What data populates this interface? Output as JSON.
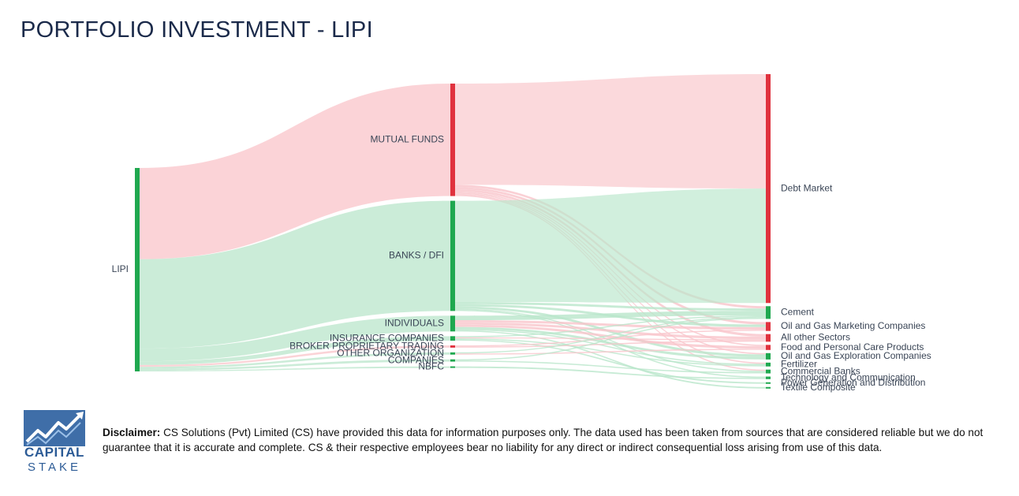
{
  "title": "PORTFOLIO INVESTMENT - LIPI",
  "colors": {
    "buy": "#1fa84f",
    "sell": "#e0323e",
    "buy_link": "#b9e6cb",
    "sell_link": "#f9c4ca",
    "label": "#3a4556"
  },
  "sankey": {
    "source": {
      "name": "LIPI",
      "color": "buy"
    },
    "investors": [
      {
        "name": "MUTUAL FUNDS",
        "color": "sell",
        "value": 100
      },
      {
        "name": "BANKS / DFI",
        "color": "buy",
        "value": 98
      },
      {
        "name": "INDIVIDUALS",
        "color": "buy",
        "value": 14
      },
      {
        "name": "INSURANCE COMPANIES",
        "color": "buy",
        "value": 4
      },
      {
        "name": "BROKER PROPRIETARY TRADING",
        "color": "sell",
        "value": 2
      },
      {
        "name": "OTHER ORGANIZATION",
        "color": "buy",
        "value": 2
      },
      {
        "name": "COMPANIES",
        "color": "buy",
        "value": 2
      },
      {
        "name": "NBFC",
        "color": "buy",
        "value": 1
      }
    ],
    "sectors": [
      {
        "name": "Debt Market",
        "color": "sell",
        "value": 180
      },
      {
        "name": "Cement",
        "color": "buy",
        "value": 10
      },
      {
        "name": "Oil and Gas Marketing Companies",
        "color": "sell",
        "value": 7
      },
      {
        "name": "All other Sectors",
        "color": "sell",
        "value": 6
      },
      {
        "name": "Food and Personal Care Products",
        "color": "sell",
        "value": 4
      },
      {
        "name": "Oil and Gas Exploration Companies",
        "color": "buy",
        "value": 5
      },
      {
        "name": "Fertilizer",
        "color": "buy",
        "value": 3
      },
      {
        "name": "Commercial Banks",
        "color": "buy",
        "value": 3
      },
      {
        "name": "Technology and Communication",
        "color": "buy",
        "value": 2
      },
      {
        "name": "Power Generation and Distribution",
        "color": "buy",
        "value": 1
      },
      {
        "name": "Textile Composite",
        "color": "buy",
        "value": 1
      }
    ],
    "flows": [
      {
        "from": "MUTUAL FUNDS",
        "to": "Debt Market",
        "value": 90,
        "color": "sell"
      },
      {
        "from": "MUTUAL FUNDS",
        "to": "Cement",
        "value": 2,
        "color": "sell"
      },
      {
        "from": "MUTUAL FUNDS",
        "to": "Oil and Gas Marketing Companies",
        "value": 2,
        "color": "sell"
      },
      {
        "from": "MUTUAL FUNDS",
        "to": "All other Sectors",
        "value": 2,
        "color": "sell"
      },
      {
        "from": "MUTUAL FUNDS",
        "to": "Food and Personal Care Products",
        "value": 1,
        "color": "sell"
      },
      {
        "from": "MUTUAL FUNDS",
        "to": "Oil and Gas Exploration Companies",
        "value": 1,
        "color": "sell"
      },
      {
        "from": "MUTUAL FUNDS",
        "to": "Fertilizer",
        "value": 1,
        "color": "sell"
      },
      {
        "from": "MUTUAL FUNDS",
        "to": "Commercial Banks",
        "value": 1,
        "color": "sell"
      },
      {
        "from": "BANKS / DFI",
        "to": "Debt Market",
        "value": 90,
        "color": "buy"
      },
      {
        "from": "BANKS / DFI",
        "to": "Cement",
        "value": 2,
        "color": "buy"
      },
      {
        "from": "BANKS / DFI",
        "to": "Oil and Gas Marketing Companies",
        "value": 2,
        "color": "buy"
      },
      {
        "from": "BANKS / DFI",
        "to": "Oil and Gas Exploration Companies",
        "value": 2,
        "color": "buy"
      },
      {
        "from": "BANKS / DFI",
        "to": "Commercial Banks",
        "value": 1,
        "color": "buy"
      },
      {
        "from": "BANKS / DFI",
        "to": "Technology and Communication",
        "value": 1,
        "color": "buy"
      },
      {
        "from": "INDIVIDUALS",
        "to": "Cement",
        "value": 4,
        "color": "buy"
      },
      {
        "from": "INDIVIDUALS",
        "to": "Oil and Gas Marketing Companies",
        "value": 2,
        "color": "sell"
      },
      {
        "from": "INDIVIDUALS",
        "to": "All other Sectors",
        "value": 2,
        "color": "sell"
      },
      {
        "from": "INDIVIDUALS",
        "to": "Food and Personal Care Products",
        "value": 2,
        "color": "sell"
      },
      {
        "from": "INDIVIDUALS",
        "to": "Oil and Gas Exploration Companies",
        "value": 2,
        "color": "buy"
      },
      {
        "from": "INDIVIDUALS",
        "to": "Fertilizer",
        "value": 1,
        "color": "buy"
      },
      {
        "from": "INDIVIDUALS",
        "to": "Textile Composite",
        "value": 1,
        "color": "buy"
      },
      {
        "from": "INSURANCE COMPANIES",
        "to": "Cement",
        "value": 1,
        "color": "buy"
      },
      {
        "from": "INSURANCE COMPANIES",
        "to": "All other Sectors",
        "value": 1,
        "color": "sell"
      },
      {
        "from": "INSURANCE COMPANIES",
        "to": "Fertilizer",
        "value": 1,
        "color": "buy"
      },
      {
        "from": "INSURANCE COMPANIES",
        "to": "Power Generation and Distribution",
        "value": 1,
        "color": "buy"
      },
      {
        "from": "BROKER PROPRIETARY TRADING",
        "to": "Oil and Gas Marketing Companies",
        "value": 1,
        "color": "sell"
      },
      {
        "from": "BROKER PROPRIETARY TRADING",
        "to": "All other Sectors",
        "value": 1,
        "color": "sell"
      },
      {
        "from": "OTHER ORGANIZATION",
        "to": "Cement",
        "value": 1,
        "color": "buy"
      },
      {
        "from": "OTHER ORGANIZATION",
        "to": "Food and Personal Care Products",
        "value": 1,
        "color": "sell"
      },
      {
        "from": "COMPANIES",
        "to": "Cement",
        "value": 1,
        "color": "buy"
      },
      {
        "from": "COMPANIES",
        "to": "Commercial Banks",
        "value": 1,
        "color": "buy"
      },
      {
        "from": "NBFC",
        "to": "Technology and Communication",
        "value": 1,
        "color": "buy"
      }
    ]
  },
  "logo": {
    "line1": "CAPITAL",
    "line2": "STAKE"
  },
  "disclaimer": {
    "label": "Disclaimer:",
    "text": " CS Solutions (Pvt) Limited (CS) have provided this data for information purposes only. The data used has been taken from sources that are considered reliable but we do not guarantee that it is accurate and complete. CS & their respective employees bear no liability for any direct or indirect consequential loss arising from use of this data."
  }
}
